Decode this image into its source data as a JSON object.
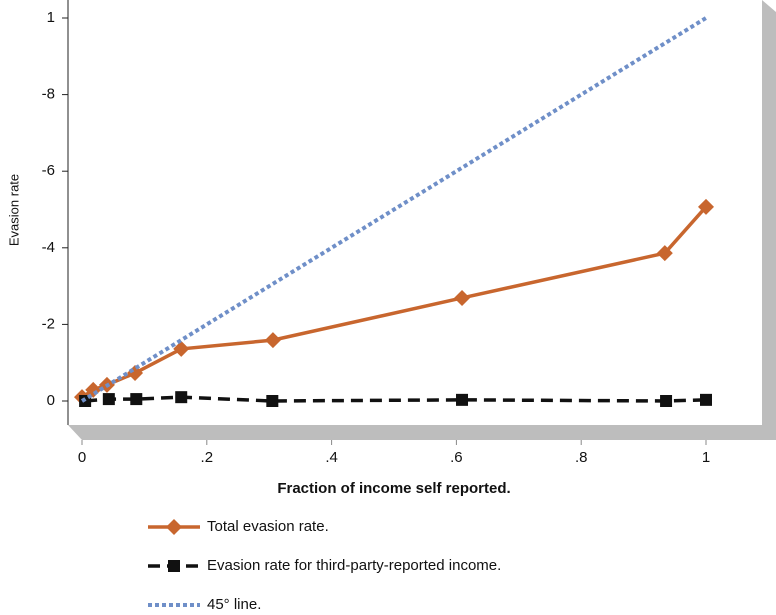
{
  "chart_data": {
    "type": "line",
    "x_label": "Fraction of income self reported.",
    "y_label": "Evasion rate",
    "xlim": [
      0,
      1
    ],
    "ylim": [
      0,
      1
    ],
    "xticks": [
      0,
      {
        "value": 0.2,
        "label": ".2"
      },
      {
        "value": 0.4,
        "label": ".4"
      },
      {
        "value": 0.6,
        "label": ".6"
      },
      {
        "value": 0.8,
        "label": ".8"
      },
      1
    ],
    "yticks": [
      0,
      {
        "value": 0.2,
        "label": "-2"
      },
      {
        "value": 0.4,
        "label": "-4"
      },
      {
        "value": 0.6,
        "label": "-6"
      },
      {
        "value": 0.8,
        "label": "-8"
      },
      1
    ],
    "series": [
      {
        "name": "Total evasion rate.",
        "color": "#c8662e",
        "marker": "diamond",
        "dash": "solid",
        "x": [
          0.0,
          0.018,
          0.04,
          0.085,
          0.159,
          0.306,
          0.609,
          0.934,
          1.0
        ],
        "values": [
          0.01,
          0.029,
          0.042,
          0.073,
          0.136,
          0.159,
          0.269,
          0.386,
          0.507
        ]
      },
      {
        "name": "Evasion rate for third-party-reported income.",
        "color": "#111111",
        "marker": "square",
        "dash": "dashed",
        "x": [
          0.005,
          0.043,
          0.087,
          0.159,
          0.305,
          0.609,
          0.936,
          1.0
        ],
        "values": [
          0.0,
          0.005,
          0.005,
          0.01,
          0.0,
          0.003,
          0.0,
          0.003
        ]
      },
      {
        "name": "45° line.",
        "color": "#6f8fc8",
        "marker": "none",
        "dash": "dotted",
        "x": [
          0,
          1
        ],
        "values": [
          0,
          1
        ]
      }
    ]
  }
}
